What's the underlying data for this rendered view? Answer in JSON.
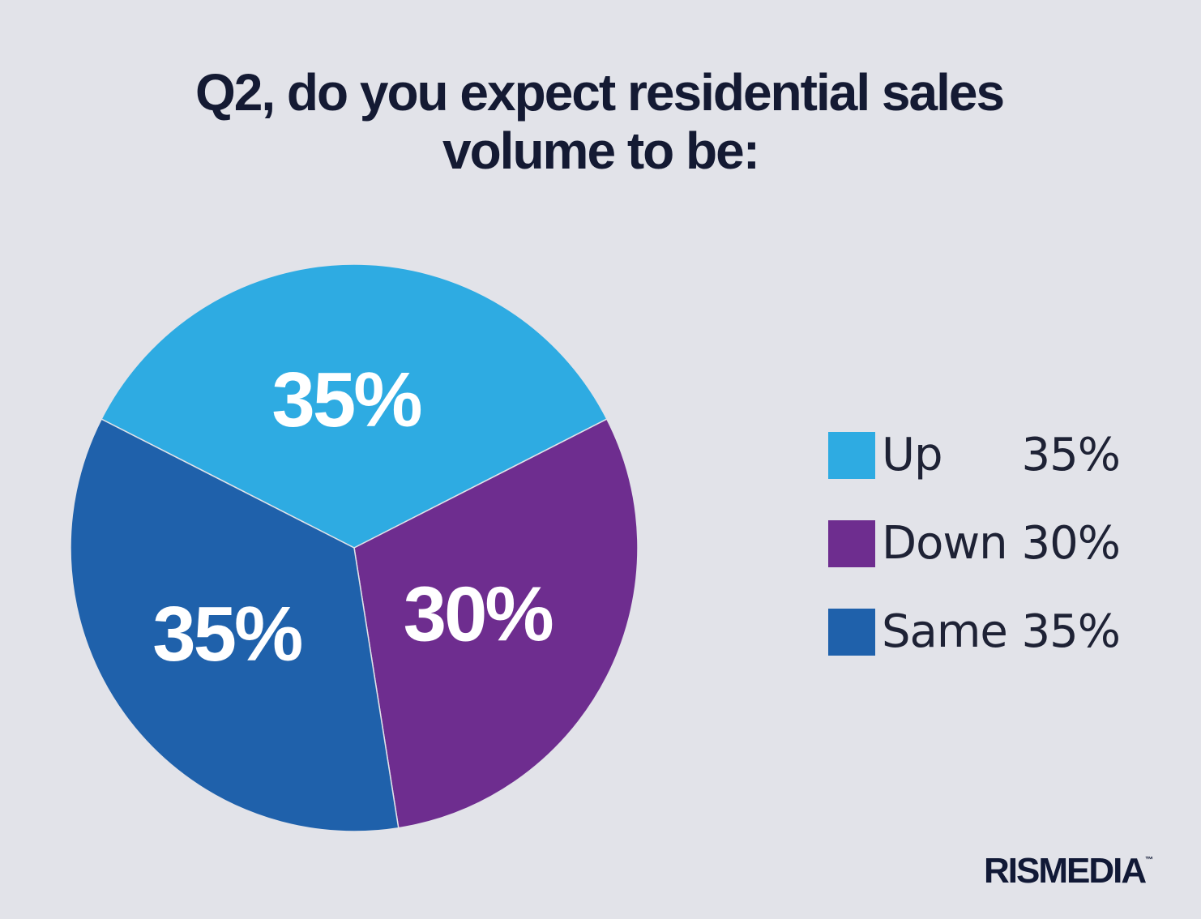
{
  "chart_data": {
    "type": "pie",
    "title_lines": [
      "Q2, do you expect residential sales",
      "volume to be:"
    ],
    "categories": [
      "Up",
      "Down",
      "Same"
    ],
    "values": [
      35,
      30,
      35
    ],
    "data_labels": [
      "35%",
      "30%",
      "35%"
    ],
    "colors": [
      "#2eabe2",
      "#6e2d8f",
      "#1f61ab"
    ],
    "legend_position": "right",
    "legend_values": [
      "35%",
      "30%",
      "35%"
    ]
  },
  "branding": {
    "logo": "RISMEDIA",
    "tm": "™"
  }
}
